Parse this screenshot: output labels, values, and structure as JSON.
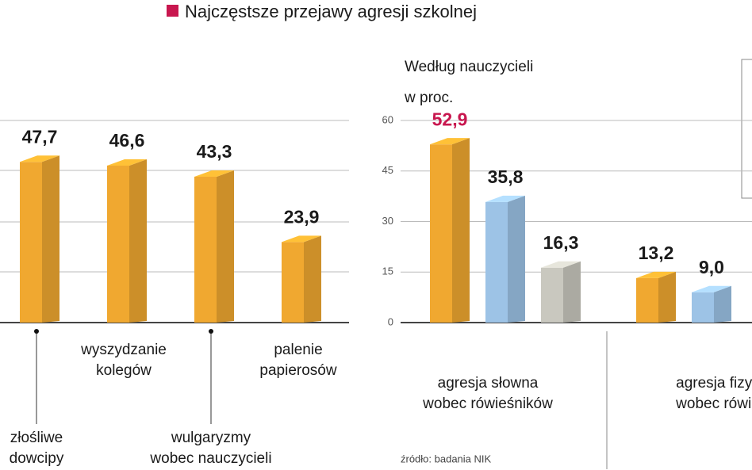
{
  "header": {
    "title": "Najczęstsze przejawy agresji szkolnej"
  },
  "chart_data": [
    {
      "type": "bar3d",
      "categories": [
        [
          "złośliwe",
          "dowcipy"
        ],
        [
          "wyszydzanie",
          "kolegów"
        ],
        [
          "wulgaryzmy",
          "wobec nauczycieli"
        ],
        [
          "palenie",
          "papierosów"
        ]
      ],
      "values": [
        47.7,
        46.6,
        43.3,
        23.9
      ],
      "value_labels": [
        "47,7",
        "46,6",
        "43,3",
        "23,9"
      ],
      "color": "#f0a830",
      "ylim": [
        0,
        60
      ]
    },
    {
      "type": "grouped_bar3d",
      "subtitle": "Według nauczycieli",
      "ylabel": "w proc.",
      "categories": [
        [
          "agresja słowna",
          "wobec rówieśników"
        ],
        [
          "agresja fizyczn",
          "wobec rówieśn"
        ]
      ],
      "series": [
        {
          "color": "#f0a830",
          "values": [
            52.9,
            13.2
          ],
          "value_labels": [
            "52,9",
            "13,2"
          ]
        },
        {
          "color": "#9dc3e6",
          "values": [
            35.8,
            9.0
          ],
          "value_labels": [
            "35,8",
            "9,0"
          ]
        },
        {
          "color": "#c9c8bf",
          "values": [
            16.3,
            null
          ],
          "value_labels": [
            "16,3",
            null
          ]
        }
      ],
      "highlight": {
        "series": 0,
        "index": 0,
        "color": "#c8174f"
      },
      "ylim": [
        0,
        60
      ],
      "yticks": [
        0,
        15,
        30,
        45,
        60
      ],
      "grid": true,
      "source": "źródło: badania NIK"
    }
  ]
}
